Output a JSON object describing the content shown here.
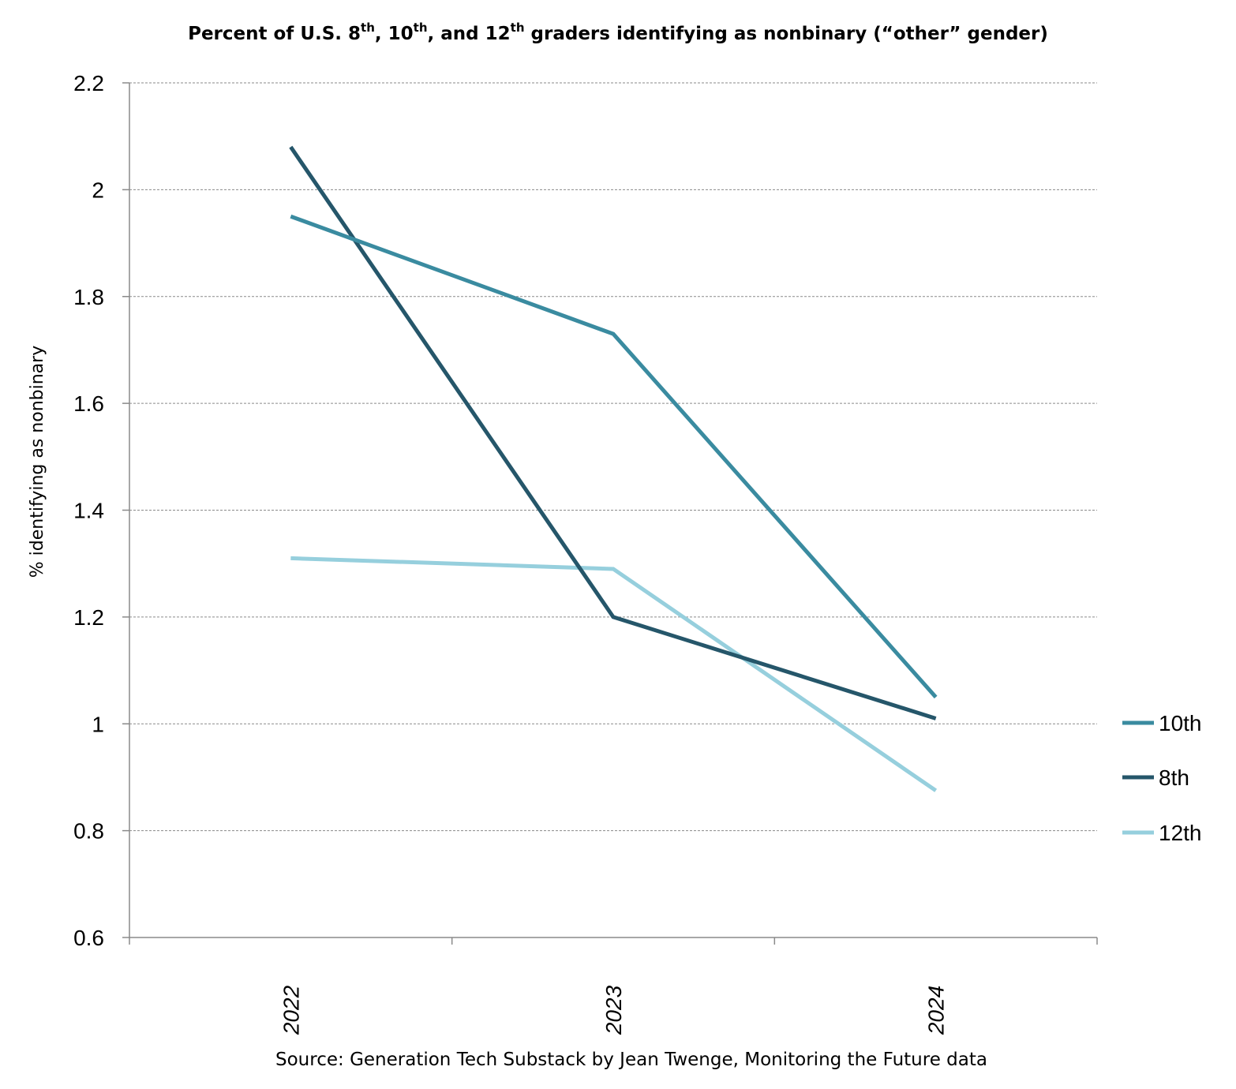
{
  "chart_data": {
    "type": "line",
    "title_parts": [
      "Percent of U.S. 8",
      "th",
      ", 10",
      "th",
      ", and 12",
      "th",
      " graders identifying as nonbinary (“other” gender)"
    ],
    "ylabel": "% identifying as nonbinary",
    "xlabel": "",
    "categories": [
      "2022",
      "2023",
      "2024"
    ],
    "ylim": [
      0.6,
      2.2
    ],
    "yticks": [
      "0.6",
      "0.8",
      "1",
      "1.2",
      "1.4",
      "1.6",
      "1.8",
      "2",
      "2.2"
    ],
    "grid": true,
    "legend_position": "right",
    "series": [
      {
        "name": "10th",
        "color": "#3a8ba0",
        "values": [
          1.95,
          1.73,
          1.05
        ]
      },
      {
        "name": "8th",
        "color": "#25566a",
        "values": [
          2.08,
          1.2,
          1.01
        ]
      },
      {
        "name": "12th",
        "color": "#96cfdd",
        "values": [
          1.31,
          1.29,
          0.875
        ]
      }
    ],
    "source": "Source: Generation Tech Substack by Jean Twenge, Monitoring the Future data"
  }
}
